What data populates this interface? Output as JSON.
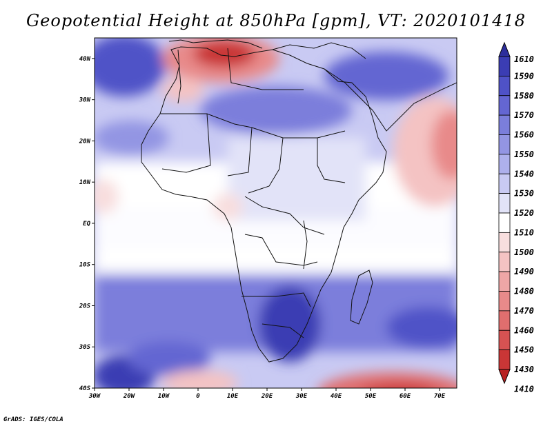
{
  "title": "Geopotential Height at 850hPa [gpm], VT: 2020101418",
  "credit": "GrADS: IGES/COLA",
  "map": {
    "lon_labels": [
      "30W",
      "20W",
      "10W",
      "0",
      "10E",
      "20E",
      "30E",
      "40E",
      "50E",
      "60E",
      "70E"
    ],
    "lat_labels": [
      "40N",
      "30N",
      "20N",
      "10N",
      "EQ",
      "10S",
      "20S",
      "30S",
      "40S"
    ],
    "lon_range": [
      -30,
      75
    ],
    "lat_range": [
      -40,
      45
    ]
  },
  "colorbar": {
    "levels": [
      "1610",
      "1590",
      "1580",
      "1570",
      "1560",
      "1550",
      "1540",
      "1530",
      "1520",
      "1510",
      "1500",
      "1490",
      "1480",
      "1470",
      "1460",
      "1450",
      "1430",
      "1410"
    ],
    "colors": [
      "#2d2e9c",
      "#3b3db3",
      "#4f52c7",
      "#6466d2",
      "#7b7edb",
      "#9395e3",
      "#aeb0ec",
      "#c9caf3",
      "#e2e3f8",
      "#ffffff",
      "#f8dede",
      "#f4c3c3",
      "#eea6a6",
      "#e88a8a",
      "#e06e6e",
      "#d65252",
      "#c93636",
      "#b82222"
    ]
  }
}
